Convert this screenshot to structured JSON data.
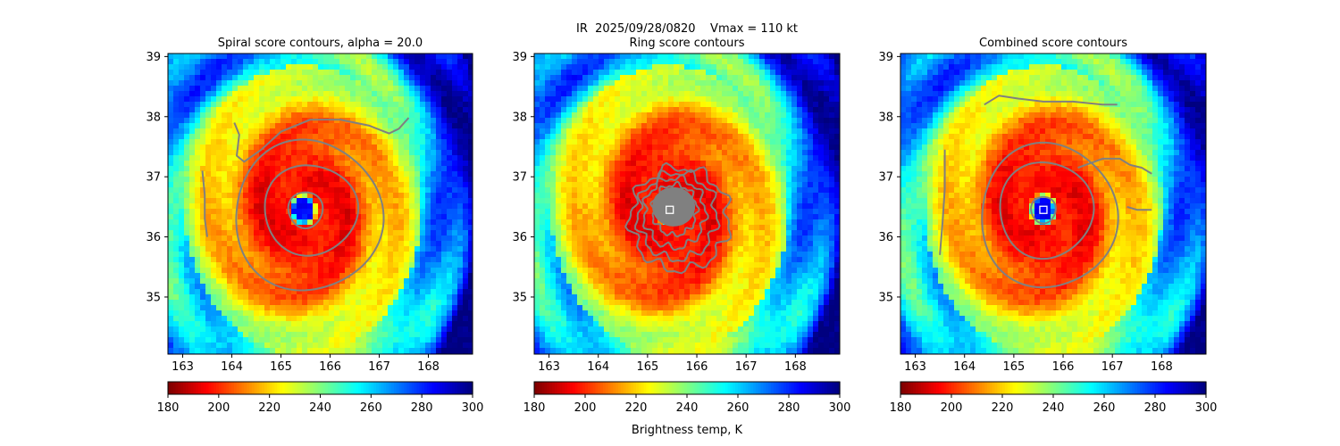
{
  "figure": {
    "suptitle": "IR  2025/09/28/0820    Vmax = 110 kt",
    "colorbar_label": "Brightness temp, K",
    "colormap": [
      "#7f0000",
      "#ff0000",
      "#ff7f00",
      "#ffff00",
      "#7fff7f",
      "#00ffff",
      "#007fff",
      "#0000ff",
      "#00007f"
    ],
    "contour_color": "#808080"
  },
  "chart_data": [
    {
      "type": "heatmap",
      "title": "Spiral score contours, alpha = 20.0",
      "xlim": [
        162.7,
        168.9
      ],
      "ylim": [
        34.05,
        39.05
      ],
      "xticks": [
        163,
        164,
        165,
        166,
        167,
        168
      ],
      "yticks": [
        35,
        36,
        37,
        38,
        39
      ],
      "storm_center": [
        165.45,
        36.45
      ],
      "center_marker": false,
      "colorbar": {
        "min": 180,
        "max": 300,
        "ticks": [
          180,
          200,
          220,
          240,
          260,
          280,
          300
        ],
        "label": ""
      },
      "contours": [
        {
          "kind": "ring",
          "cx": 165.5,
          "cy": 36.45,
          "rx": 0.35,
          "ry": 0.3
        },
        {
          "kind": "ring",
          "cx": 165.6,
          "cy": 36.45,
          "rx": 0.95,
          "ry": 0.75
        },
        {
          "kind": "ring",
          "cx": 165.55,
          "cy": 36.35,
          "rx": 1.5,
          "ry": 1.25
        },
        {
          "kind": "path",
          "points": [
            [
              164.05,
              37.9
            ],
            [
              164.15,
              37.7
            ],
            [
              164.1,
              37.35
            ],
            [
              164.25,
              37.25
            ],
            [
              164.6,
              37.45
            ],
            [
              165.0,
              37.75
            ],
            [
              165.6,
              37.95
            ],
            [
              166.2,
              37.95
            ],
            [
              166.8,
              37.85
            ],
            [
              167.2,
              37.72
            ],
            [
              167.4,
              37.8
            ],
            [
              167.6,
              37.98
            ]
          ]
        },
        {
          "kind": "path",
          "points": [
            [
              163.4,
              37.1
            ],
            [
              163.45,
              36.7
            ],
            [
              163.45,
              36.3
            ],
            [
              163.5,
              36.0
            ]
          ]
        }
      ]
    },
    {
      "type": "heatmap",
      "title": "Ring score contours",
      "xlim": [
        162.7,
        168.9
      ],
      "ylim": [
        34.05,
        39.05
      ],
      "xticks": [
        163,
        164,
        165,
        166,
        167,
        168
      ],
      "yticks": [
        35,
        36,
        37,
        38,
        39
      ],
      "storm_center": [
        165.45,
        36.45
      ],
      "center_marker": true,
      "center_fill": true,
      "colorbar": {
        "min": 180,
        "max": 300,
        "ticks": [
          180,
          200,
          220,
          240,
          260,
          280,
          300
        ],
        "label": "Brightness temp, K"
      },
      "contours": [
        {
          "kind": "ring",
          "cx": 165.55,
          "cy": 36.5,
          "rx": 0.3,
          "ry": 0.28
        },
        {
          "kind": "ring",
          "cx": 165.55,
          "cy": 36.45,
          "rx": 0.45,
          "ry": 0.42,
          "wobble": true
        },
        {
          "kind": "ring",
          "cx": 165.55,
          "cy": 36.4,
          "rx": 0.62,
          "ry": 0.58,
          "wobble": true
        },
        {
          "kind": "ring",
          "cx": 165.6,
          "cy": 36.35,
          "rx": 0.8,
          "ry": 0.72,
          "wobble": true
        },
        {
          "kind": "ring",
          "cx": 165.65,
          "cy": 36.3,
          "rx": 1.0,
          "ry": 0.85,
          "wobble": true
        }
      ]
    },
    {
      "type": "heatmap",
      "title": "Combined score contours",
      "xlim": [
        162.7,
        168.9
      ],
      "ylim": [
        34.05,
        39.05
      ],
      "xticks": [
        163,
        164,
        165,
        166,
        167,
        168
      ],
      "yticks": [
        35,
        36,
        37,
        38,
        39
      ],
      "storm_center": [
        165.6,
        36.45
      ],
      "center_marker": true,
      "center_fill": false,
      "colorbar": {
        "min": 180,
        "max": 300,
        "ticks": [
          180,
          200,
          220,
          240,
          260,
          280,
          300
        ],
        "label": ""
      },
      "contours": [
        {
          "kind": "ring",
          "cx": 165.6,
          "cy": 36.45,
          "rx": 0.25,
          "ry": 0.22
        },
        {
          "kind": "ring",
          "cx": 165.65,
          "cy": 36.45,
          "rx": 0.95,
          "ry": 0.8
        },
        {
          "kind": "ring",
          "cx": 165.7,
          "cy": 36.35,
          "rx": 1.38,
          "ry": 1.2
        },
        {
          "kind": "path",
          "points": [
            [
              164.4,
              38.2
            ],
            [
              164.7,
              38.35
            ],
            [
              165.1,
              38.3
            ],
            [
              165.6,
              38.25
            ],
            [
              166.2,
              38.25
            ],
            [
              166.8,
              38.2
            ],
            [
              167.1,
              38.2
            ]
          ]
        },
        {
          "kind": "path",
          "points": [
            [
              166.3,
              37.15
            ],
            [
              166.8,
              37.3
            ],
            [
              167.15,
              37.3
            ],
            [
              167.35,
              37.2
            ],
            [
              167.6,
              37.15
            ],
            [
              167.8,
              37.05
            ]
          ]
        },
        {
          "kind": "path",
          "points": [
            [
              167.3,
              36.5
            ],
            [
              167.5,
              36.45
            ],
            [
              167.8,
              36.45
            ]
          ]
        },
        {
          "kind": "path",
          "points": [
            [
              163.6,
              37.45
            ],
            [
              163.6,
              36.8
            ],
            [
              163.55,
              36.2
            ],
            [
              163.5,
              35.7
            ]
          ]
        }
      ]
    }
  ]
}
